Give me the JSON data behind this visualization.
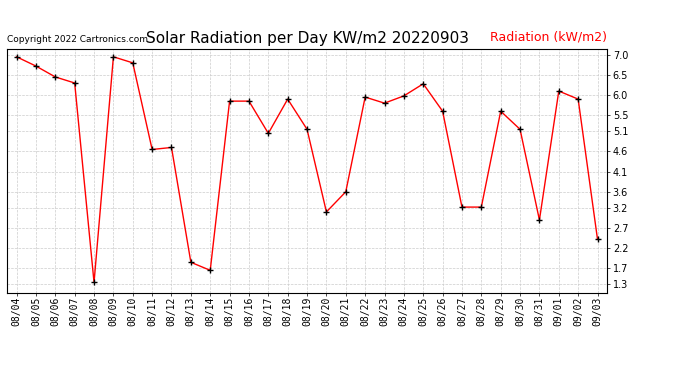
{
  "title": "Solar Radiation per Day KW/m2 20220903",
  "legend_label": "Radiation (kW/m2)",
  "copyright_text": "Copyright 2022 Cartronics.com",
  "dates": [
    "08/04",
    "08/05",
    "08/06",
    "08/07",
    "08/08",
    "08/09",
    "08/10",
    "08/11",
    "08/12",
    "08/13",
    "08/14",
    "08/15",
    "08/16",
    "08/17",
    "08/18",
    "08/19",
    "08/20",
    "08/21",
    "08/22",
    "08/23",
    "08/24",
    "08/25",
    "08/26",
    "08/27",
    "08/28",
    "08/29",
    "08/30",
    "08/31",
    "09/01",
    "09/02",
    "09/03"
  ],
  "data_points": [
    6.95,
    6.72,
    6.45,
    6.3,
    1.35,
    6.95,
    6.8,
    4.65,
    4.7,
    1.85,
    1.65,
    5.85,
    5.85,
    5.05,
    5.9,
    5.15,
    3.1,
    3.6,
    5.95,
    5.8,
    5.98,
    6.28,
    5.6,
    3.22,
    3.22,
    5.6,
    5.15,
    2.9,
    6.1,
    5.9,
    2.42
  ],
  "yticks": [
    1.3,
    1.7,
    2.2,
    2.7,
    3.2,
    3.6,
    4.1,
    4.6,
    5.1,
    5.5,
    6.0,
    6.5,
    7.0
  ],
  "ymin": 1.1,
  "ymax": 7.15,
  "line_color": "red",
  "marker_color": "black",
  "background_color": "white",
  "grid_color": "#cccccc",
  "title_fontsize": 11,
  "legend_color": "red",
  "legend_fontsize": 9,
  "copyright_color": "black",
  "copyright_fontsize": 6.5,
  "tick_fontsize": 7,
  "ytick_fontsize": 7
}
